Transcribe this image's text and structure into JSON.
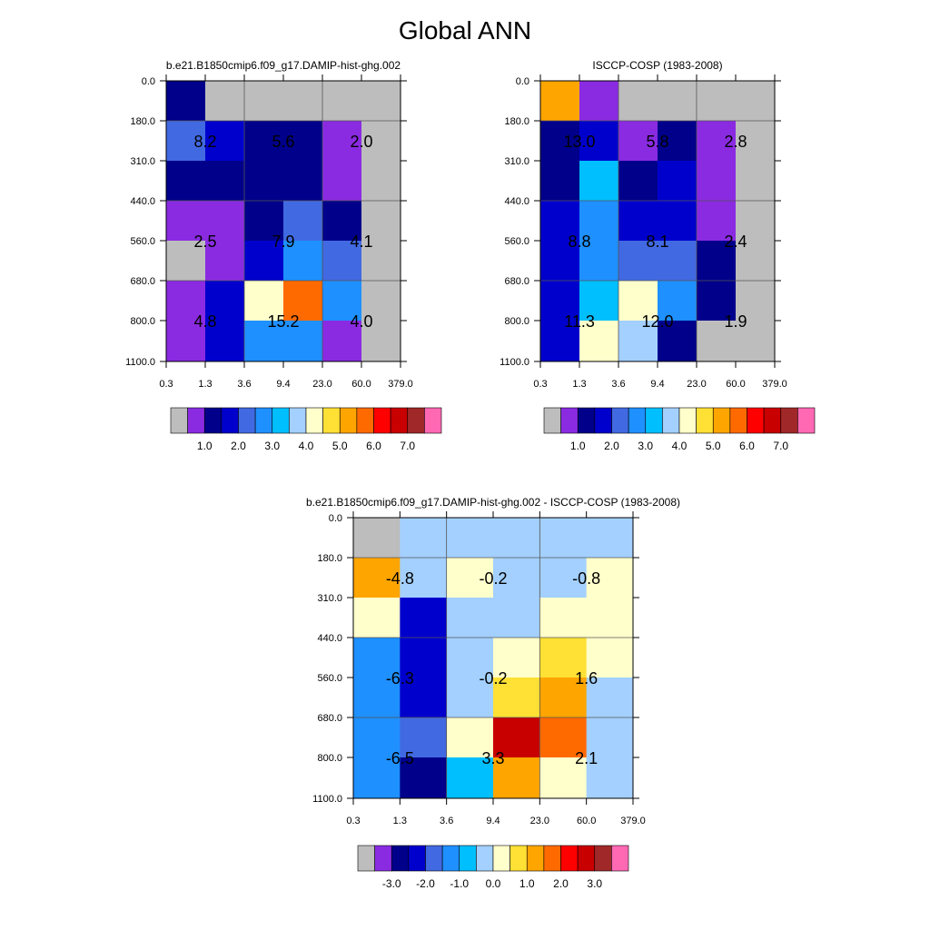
{
  "figure": {
    "title": "Global ANN"
  },
  "palettes": {
    "abs": [
      "#bdbdbd",
      "#8a2be2",
      "#00008b",
      "#0000cd",
      "#4169e1",
      "#1e90ff",
      "#00bfff",
      "#a3d0ff",
      "#ffffcc",
      "#ffe034",
      "#ffa500",
      "#ff6a00",
      "#ff0000",
      "#c80000",
      "#a02828",
      "#ff69b4"
    ],
    "diff": [
      "#bdbdbd",
      "#8a2be2",
      "#00008b",
      "#0000cd",
      "#4169e1",
      "#1e90ff",
      "#00bfff",
      "#a3d0ff",
      "#ffffcc",
      "#ffe034",
      "#ffa500",
      "#ff6a00",
      "#ff0000",
      "#c80000",
      "#a02828",
      "#ff69b4"
    ]
  },
  "chart_data": [
    {
      "id": "model",
      "type": "heatmap",
      "title": "b.e21.B1850cmip6.f09_g17.DAMIP-hist-ghg.002",
      "xlabel": "",
      "ylabel": "",
      "x_ticks": [
        "0.3",
        "1.3",
        "3.6",
        "9.4",
        "23.0",
        "60.0",
        "379.0"
      ],
      "y_ticks": [
        "0.0",
        "180.0",
        "310.0",
        "440.0",
        "560.0",
        "680.0",
        "800.0",
        "1100.0"
      ],
      "cells": [
        [
          2,
          0,
          0,
          0,
          0,
          0
        ],
        [
          4,
          3,
          2,
          2,
          1,
          0
        ],
        [
          2,
          2,
          2,
          2,
          1,
          0
        ],
        [
          1,
          1,
          2,
          4,
          2,
          0
        ],
        [
          0,
          1,
          3,
          5,
          4,
          0
        ],
        [
          1,
          3,
          8,
          11,
          5,
          0
        ],
        [
          1,
          3,
          5,
          5,
          1,
          0
        ]
      ],
      "labels": [
        {
          "text": "8.2",
          "col": 1,
          "row": 1.5
        },
        {
          "text": "5.6",
          "col": 3,
          "row": 1.5
        },
        {
          "text": "2.0",
          "col": 5,
          "row": 1.5
        },
        {
          "text": "2.5",
          "col": 1,
          "row": 4
        },
        {
          "text": "7.9",
          "col": 3,
          "row": 4
        },
        {
          "text": "4.1",
          "col": 5,
          "row": 4
        },
        {
          "text": "4.8",
          "col": 1,
          "row": 6
        },
        {
          "text": "15.2",
          "col": 3,
          "row": 6
        },
        {
          "text": "4.0",
          "col": 5,
          "row": 6
        }
      ],
      "colorbar": {
        "palette": "abs",
        "tick_labels": [
          "1.0",
          "2.0",
          "3.0",
          "4.0",
          "5.0",
          "6.0",
          "7.0"
        ]
      }
    },
    {
      "id": "obs",
      "type": "heatmap",
      "title": "ISCCP-COSP (1983-2008)",
      "xlabel": "",
      "ylabel": "",
      "x_ticks": [
        "0.3",
        "1.3",
        "3.6",
        "9.4",
        "23.0",
        "60.0",
        "379.0"
      ],
      "y_ticks": [
        "0.0",
        "180.0",
        "310.0",
        "440.0",
        "560.0",
        "680.0",
        "800.0",
        "1100.0"
      ],
      "cells": [
        [
          10,
          1,
          0,
          0,
          0,
          0
        ],
        [
          2,
          3,
          1,
          2,
          1,
          0
        ],
        [
          2,
          6,
          2,
          3,
          1,
          0
        ],
        [
          3,
          5,
          3,
          3,
          1,
          0
        ],
        [
          3,
          5,
          4,
          4,
          2,
          0
        ],
        [
          3,
          6,
          8,
          5,
          2,
          0
        ],
        [
          3,
          8,
          7,
          2,
          0,
          0
        ]
      ],
      "labels": [
        {
          "text": "13.0",
          "col": 1,
          "row": 1.5
        },
        {
          "text": "5.8",
          "col": 3,
          "row": 1.5
        },
        {
          "text": "2.8",
          "col": 5,
          "row": 1.5
        },
        {
          "text": "8.8",
          "col": 1,
          "row": 4
        },
        {
          "text": "8.1",
          "col": 3,
          "row": 4
        },
        {
          "text": "2.4",
          "col": 5,
          "row": 4
        },
        {
          "text": "11.3",
          "col": 1,
          "row": 6
        },
        {
          "text": "12.0",
          "col": 3,
          "row": 6
        },
        {
          "text": "1.9",
          "col": 5,
          "row": 6
        }
      ],
      "colorbar": {
        "palette": "abs",
        "tick_labels": [
          "1.0",
          "2.0",
          "3.0",
          "4.0",
          "5.0",
          "6.0",
          "7.0"
        ]
      }
    },
    {
      "id": "diff",
      "type": "heatmap",
      "title": "b.e21.B1850cmip6.f09_g17.DAMIP-hist-ghg.002 - ISCCP-COSP (1983-2008)",
      "xlabel": "",
      "ylabel": "",
      "x_ticks": [
        "0.3",
        "1.3",
        "3.6",
        "9.4",
        "23.0",
        "60.0",
        "379.0"
      ],
      "y_ticks": [
        "0.0",
        "180.0",
        "310.0",
        "440.0",
        "560.0",
        "680.0",
        "800.0",
        "1100.0"
      ],
      "cells": [
        [
          0,
          7,
          7,
          7,
          7,
          7
        ],
        [
          10,
          7,
          8,
          7,
          7,
          8
        ],
        [
          8,
          3,
          7,
          7,
          8,
          8
        ],
        [
          5,
          3,
          7,
          8,
          9,
          8
        ],
        [
          5,
          3,
          7,
          9,
          10,
          7
        ],
        [
          5,
          4,
          8,
          13,
          11,
          7
        ],
        [
          5,
          2,
          6,
          10,
          8,
          7
        ]
      ],
      "labels": [
        {
          "text": "-4.8",
          "col": 1,
          "row": 1.5
        },
        {
          "text": "-0.2",
          "col": 3,
          "row": 1.5
        },
        {
          "text": "-0.8",
          "col": 5,
          "row": 1.5
        },
        {
          "text": "-6.3",
          "col": 1,
          "row": 4
        },
        {
          "text": "-0.2",
          "col": 3,
          "row": 4
        },
        {
          "text": "1.6",
          "col": 5,
          "row": 4
        },
        {
          "text": "-6.5",
          "col": 1,
          "row": 6
        },
        {
          "text": "3.3",
          "col": 3,
          "row": 6
        },
        {
          "text": "2.1",
          "col": 5,
          "row": 6
        }
      ],
      "colorbar": {
        "palette": "diff",
        "tick_labels": [
          "-3.0",
          "-2.0",
          "-1.0",
          "0.0",
          "1.0",
          "2.0",
          "3.0"
        ]
      }
    }
  ]
}
